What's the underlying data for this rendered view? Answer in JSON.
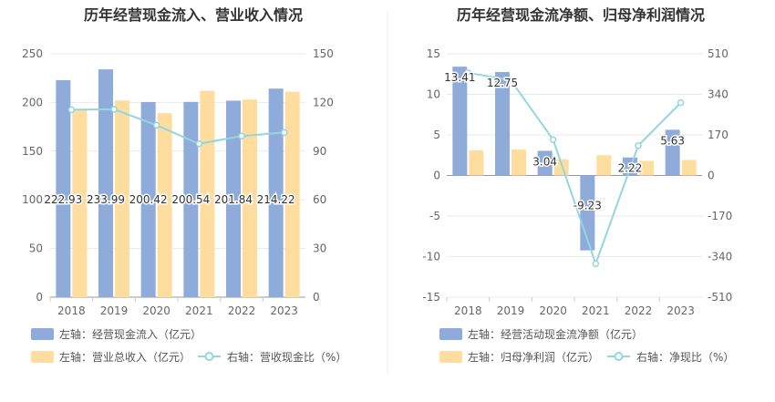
{
  "colors": {
    "bar_primary": "#8eabda",
    "bar_secondary": "#ffdd9f",
    "line": "#93d6df",
    "axis_text": "#666666",
    "grid": "#e9e9e9",
    "title": "#333333",
    "divider": "#eeeeee",
    "value_label_text": "#333333"
  },
  "chart_data": [
    {
      "type": "bar",
      "title": "历年经营现金流入、营业收入情况",
      "categories": [
        "2018",
        "2019",
        "2020",
        "2021",
        "2022",
        "2023"
      ],
      "left_axis": {
        "ylim": [
          0,
          250
        ],
        "ticks": [
          "0",
          "50",
          "100",
          "150",
          "200",
          "250"
        ]
      },
      "right_axis": {
        "ylim": [
          0,
          150
        ],
        "ticks": [
          "0",
          "30",
          "60",
          "90",
          "120",
          "150"
        ]
      },
      "series": [
        {
          "name": "左轴：经营现金流入（亿元）",
          "kind": "bar",
          "axis": "left",
          "values": [
            222.93,
            233.99,
            200.42,
            200.54,
            201.84,
            214.22
          ],
          "labels": [
            "222.93",
            "233.99",
            "200.42",
            "200.54",
            "201.84",
            "214.22"
          ]
        },
        {
          "name": "左轴：营业总收入（亿元）",
          "kind": "bar",
          "axis": "left",
          "values": [
            193,
            202,
            189,
            212,
            203,
            211
          ]
        },
        {
          "name": "右轴：营收现金比（%）",
          "kind": "line",
          "axis": "right",
          "values": [
            115.5,
            115.8,
            106,
            94.5,
            99.3,
            101.5
          ]
        }
      ],
      "legend": "bottom-left"
    },
    {
      "type": "bar",
      "title": "历年经营现金流净额、归母净利润情况",
      "categories": [
        "2018",
        "2019",
        "2020",
        "2021",
        "2022",
        "2023"
      ],
      "left_axis": {
        "ylim": [
          -15,
          15
        ],
        "ticks": [
          "-15",
          "-10",
          "-5",
          "0",
          "5",
          "10",
          "15"
        ]
      },
      "right_axis": {
        "ylim": [
          -510,
          510
        ],
        "ticks": [
          "-510",
          "-340",
          "-170",
          "0",
          "170",
          "340",
          "510"
        ]
      },
      "series": [
        {
          "name": "左轴：经营活动现金流净额（亿元）",
          "kind": "bar",
          "axis": "left",
          "values": [
            13.41,
            12.75,
            3.04,
            -9.23,
            2.22,
            5.63
          ],
          "labels": [
            "13.41",
            "12.75",
            "3.04",
            "-9.23",
            "2.22",
            "5.63"
          ]
        },
        {
          "name": "左轴：归母净利润（亿元）",
          "kind": "bar",
          "axis": "left",
          "values": [
            3.1,
            3.2,
            2.0,
            2.5,
            1.8,
            1.9
          ]
        },
        {
          "name": "右轴：净现比（%）",
          "kind": "line",
          "axis": "right",
          "values": [
            430,
            400,
            150,
            -370,
            125,
            305
          ]
        }
      ],
      "legend": "bottom-left"
    }
  ]
}
